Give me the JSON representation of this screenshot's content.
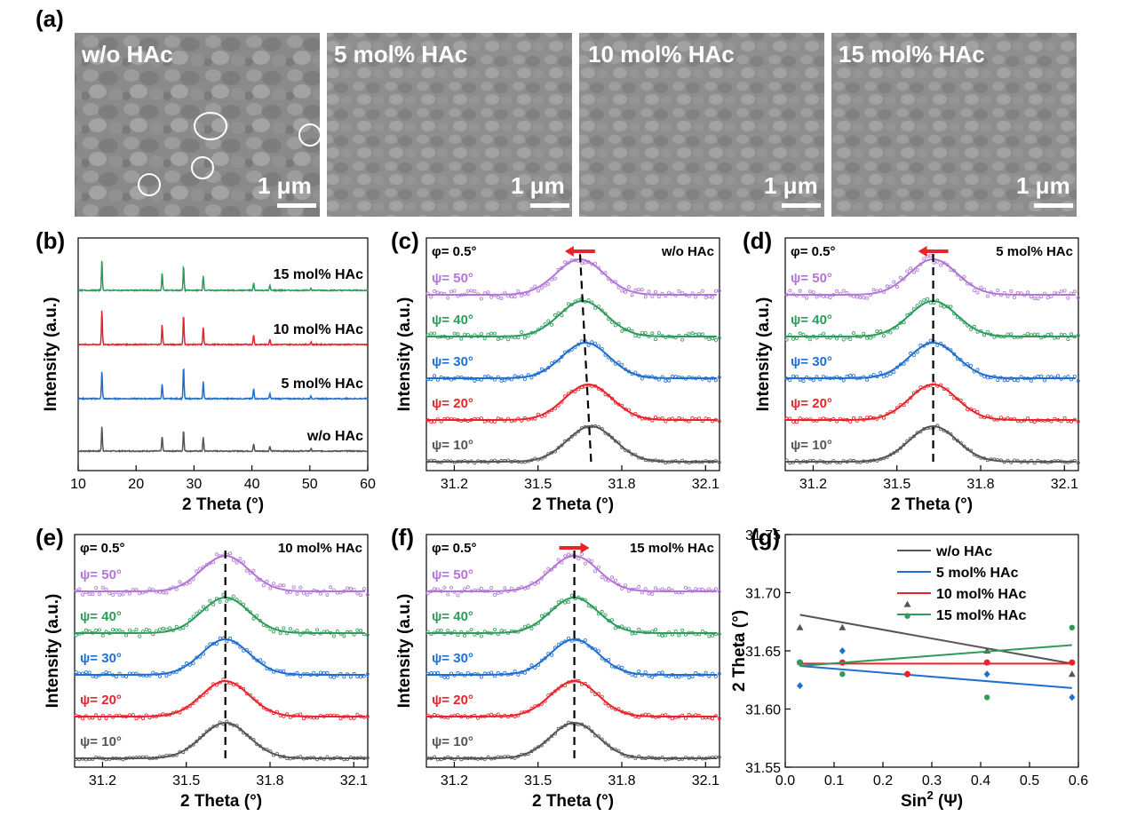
{
  "panel_labels": [
    "(a)",
    "(b)",
    "(c)",
    "(d)",
    "(e)",
    "(f)",
    "(g)"
  ],
  "sem": {
    "images": [
      {
        "label": "w/o HAc",
        "scale": "1 μm"
      },
      {
        "label": "5 mol% HAc",
        "scale": "1 μm"
      },
      {
        "label": "10 mol% HAc",
        "scale": "1 μm"
      },
      {
        "label": "15 mol% HAc",
        "scale": "1 μm"
      }
    ]
  },
  "colors": {
    "black": "#555555",
    "red": "#e8242a",
    "blue": "#1f6fd1",
    "green": "#2e9b5a",
    "purple": "#b276d6",
    "arrow": "#e8242a"
  },
  "chart_data": [
    {
      "panel": "(b)",
      "type": "line",
      "xlabel": "2 Theta (°)",
      "ylabel": "Intensity (a.u.)",
      "xlim": [
        10,
        60
      ],
      "xticks": [
        10,
        20,
        30,
        40,
        50,
        60
      ],
      "peaks": [
        14.1,
        24.5,
        28.2,
        31.6,
        40.3,
        43.1,
        50.2
      ],
      "series": [
        {
          "name": "w/o HAc",
          "color": "black",
          "heights": [
            1.0,
            0.6,
            0.85,
            0.55,
            0.3,
            0.2,
            0.1
          ]
        },
        {
          "name": "5 mol% HAc",
          "color": "blue",
          "heights": [
            1.1,
            0.6,
            1.3,
            0.7,
            0.4,
            0.2,
            0.1
          ]
        },
        {
          "name": "10 mol% HAc",
          "color": "red",
          "heights": [
            1.4,
            0.8,
            1.2,
            0.7,
            0.4,
            0.2,
            0.1
          ]
        },
        {
          "name": "15 mol% HAc",
          "color": "green",
          "heights": [
            1.2,
            0.7,
            1.0,
            0.6,
            0.3,
            0.2,
            0.1
          ]
        }
      ]
    },
    {
      "panel": "(c)",
      "type": "line",
      "title": "w/o HAc",
      "phi": "φ= 0.5°",
      "xlabel": "2 Theta (°)",
      "ylabel": "Intensity (a.u.)",
      "xlim": [
        31.1,
        32.15
      ],
      "xticks": [
        "31.2",
        "31.5",
        "31.8",
        "32.1"
      ],
      "arrow": "left",
      "series": [
        {
          "name": "ψ= 10°",
          "color": "black",
          "center": 31.69
        },
        {
          "name": "ψ= 20°",
          "color": "red",
          "center": 31.68
        },
        {
          "name": "ψ= 30°",
          "color": "blue",
          "center": 31.67
        },
        {
          "name": "ψ= 40°",
          "color": "green",
          "center": 31.66
        },
        {
          "name": "ψ= 50°",
          "color": "purple",
          "center": 31.65
        }
      ]
    },
    {
      "panel": "(d)",
      "type": "line",
      "title": "5 mol% HAc",
      "phi": "φ= 0.5°",
      "xlabel": "2 Theta (°)",
      "ylabel": "Intensity (a.u.)",
      "xlim": [
        31.1,
        32.15
      ],
      "xticks": [
        "31.2",
        "31.5",
        "31.8",
        "32.1"
      ],
      "arrow": "left",
      "series": [
        {
          "name": "ψ= 10°",
          "color": "black",
          "center": 31.63
        },
        {
          "name": "ψ= 20°",
          "color": "red",
          "center": 31.63
        },
        {
          "name": "ψ= 30°",
          "color": "blue",
          "center": 31.63
        },
        {
          "name": "ψ= 40°",
          "color": "green",
          "center": 31.63
        },
        {
          "name": "ψ= 50°",
          "color": "purple",
          "center": 31.63
        }
      ]
    },
    {
      "panel": "(e)",
      "type": "line",
      "title": "10 mol% HAc",
      "phi": "φ= 0.5°",
      "xlabel": "2 Theta (°)",
      "ylabel": "Intensity (a.u.)",
      "xlim": [
        31.1,
        32.15
      ],
      "xticks": [
        "31.2",
        "31.5",
        "31.8",
        "32.1"
      ],
      "arrow": "none",
      "series": [
        {
          "name": "ψ= 10°",
          "color": "black",
          "center": 31.64
        },
        {
          "name": "ψ= 20°",
          "color": "red",
          "center": 31.64
        },
        {
          "name": "ψ= 30°",
          "color": "blue",
          "center": 31.64
        },
        {
          "name": "ψ= 40°",
          "color": "green",
          "center": 31.64
        },
        {
          "name": "ψ= 50°",
          "color": "purple",
          "center": 31.64
        }
      ]
    },
    {
      "panel": "(f)",
      "type": "line",
      "title": "15 mol% HAc",
      "phi": "φ= 0.5°",
      "xlabel": "2 Theta (°)",
      "ylabel": "Intensity (a.u.)",
      "xlim": [
        31.1,
        32.15
      ],
      "xticks": [
        "31.2",
        "31.5",
        "31.8",
        "32.1"
      ],
      "arrow": "right",
      "series": [
        {
          "name": "ψ= 10°",
          "color": "black",
          "center": 31.63
        },
        {
          "name": "ψ= 20°",
          "color": "red",
          "center": 31.63
        },
        {
          "name": "ψ= 30°",
          "color": "blue",
          "center": 31.63
        },
        {
          "name": "ψ= 40°",
          "color": "green",
          "center": 31.63
        },
        {
          "name": "ψ= 50°",
          "color": "purple",
          "center": 31.63
        }
      ]
    },
    {
      "panel": "(g)",
      "type": "scatter",
      "xlabel": "Sin² (Ψ)",
      "xlabel_main": "Sin",
      "xlabel_sup": "2",
      "xlabel_rest": " (Ψ)",
      "ylabel": "2 Theta (°)",
      "xlim": [
        0.0,
        0.6
      ],
      "ylim": [
        31.55,
        31.75
      ],
      "xticks": [
        "0.0",
        "0.1",
        "0.2",
        "0.3",
        "0.4",
        "0.5",
        "0.6"
      ],
      "yticks": [
        "31.55",
        "31.60",
        "31.65",
        "31.70",
        "31.75"
      ],
      "legend": "top-right",
      "series": [
        {
          "name": "w/o HAc",
          "color": "black",
          "marker": "triangle",
          "x": [
            0.03,
            0.117,
            0.25,
            0.413,
            0.587
          ],
          "y": [
            31.67,
            31.67,
            31.69,
            31.65,
            31.63
          ],
          "fit": [
            31.681,
            31.639
          ]
        },
        {
          "name": "5 mol% HAc",
          "color": "blue",
          "marker": "diamond",
          "x": [
            0.03,
            0.117,
            0.25,
            0.413,
            0.587
          ],
          "y": [
            31.62,
            31.65,
            31.63,
            31.63,
            31.61
          ],
          "fit": [
            31.637,
            31.618
          ]
        },
        {
          "name": "10 mol% HAc",
          "color": "red",
          "marker": "circle",
          "x": [
            0.03,
            0.117,
            0.25,
            0.413,
            0.587
          ],
          "y": [
            31.64,
            31.64,
            31.63,
            31.64,
            31.64
          ],
          "fit": [
            31.639,
            31.639
          ]
        },
        {
          "name": "15 mol% HAc",
          "color": "green",
          "marker": "hexagon",
          "x": [
            0.03,
            0.117,
            0.25,
            0.413,
            0.587
          ],
          "y": [
            31.64,
            31.63,
            31.68,
            31.61,
            31.67
          ],
          "fit": [
            31.637,
            31.655
          ]
        }
      ]
    }
  ]
}
